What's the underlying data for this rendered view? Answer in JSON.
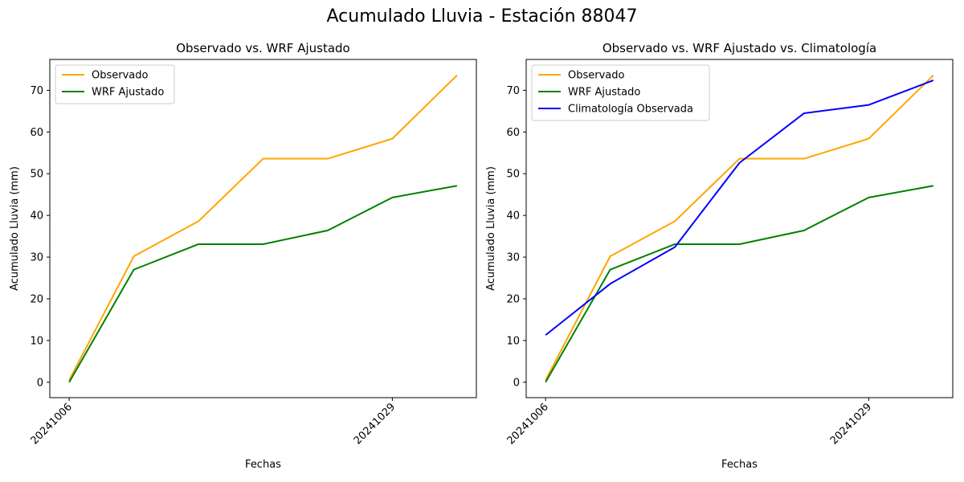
{
  "figure_title": "Acumulado Lluvia - Estación 88047",
  "colors": {
    "observado": "#ffa500",
    "wrf": "#008000",
    "climatologia": "#0000ff"
  },
  "chart_data": [
    {
      "type": "line",
      "title": "Observado vs. WRF Ajustado",
      "xlabel": "Fechas",
      "ylabel": "Acumulado Lluvia (mm)",
      "x_tick_labels": [
        {
          "index": 0,
          "label": "20241006"
        },
        {
          "index": 5,
          "label": "20241029"
        }
      ],
      "y_ticks": [
        0,
        10,
        20,
        30,
        40,
        50,
        60,
        70
      ],
      "ylim": [
        -3.7,
        77.4
      ],
      "xlim": [
        -0.3,
        6.3
      ],
      "grid": false,
      "legend_position": "upper-left",
      "series": [
        {
          "name": "Observado",
          "color": "#ffa500",
          "values": [
            0.5,
            30.2,
            38.6,
            53.6,
            53.6,
            58.4,
            73.6
          ]
        },
        {
          "name": "WRF Ajustado",
          "color": "#008000",
          "values": [
            0.0,
            27.0,
            33.1,
            33.1,
            36.4,
            44.3,
            47.1
          ]
        }
      ]
    },
    {
      "type": "line",
      "title": "Observado vs. WRF Ajustado vs. Climatología",
      "xlabel": "Fechas",
      "ylabel": "Acumulado Lluvia (mm)",
      "x_tick_labels": [
        {
          "index": 0,
          "label": "20241006"
        },
        {
          "index": 5,
          "label": "20241029"
        }
      ],
      "y_ticks": [
        0,
        10,
        20,
        30,
        40,
        50,
        60,
        70
      ],
      "ylim": [
        -3.7,
        77.4
      ],
      "xlim": [
        -0.3,
        6.3
      ],
      "grid": false,
      "legend_position": "upper-left",
      "series": [
        {
          "name": "Observado",
          "color": "#ffa500",
          "values": [
            0.5,
            30.2,
            38.6,
            53.6,
            53.6,
            58.4,
            73.6
          ]
        },
        {
          "name": "WRF Ajustado",
          "color": "#008000",
          "values": [
            0.0,
            27.0,
            33.1,
            33.1,
            36.4,
            44.3,
            47.1
          ]
        },
        {
          "name": "Climatología Observada",
          "color": "#0000ff",
          "values": [
            11.3,
            23.6,
            32.4,
            52.6,
            64.5,
            66.5,
            72.4
          ]
        }
      ]
    }
  ]
}
